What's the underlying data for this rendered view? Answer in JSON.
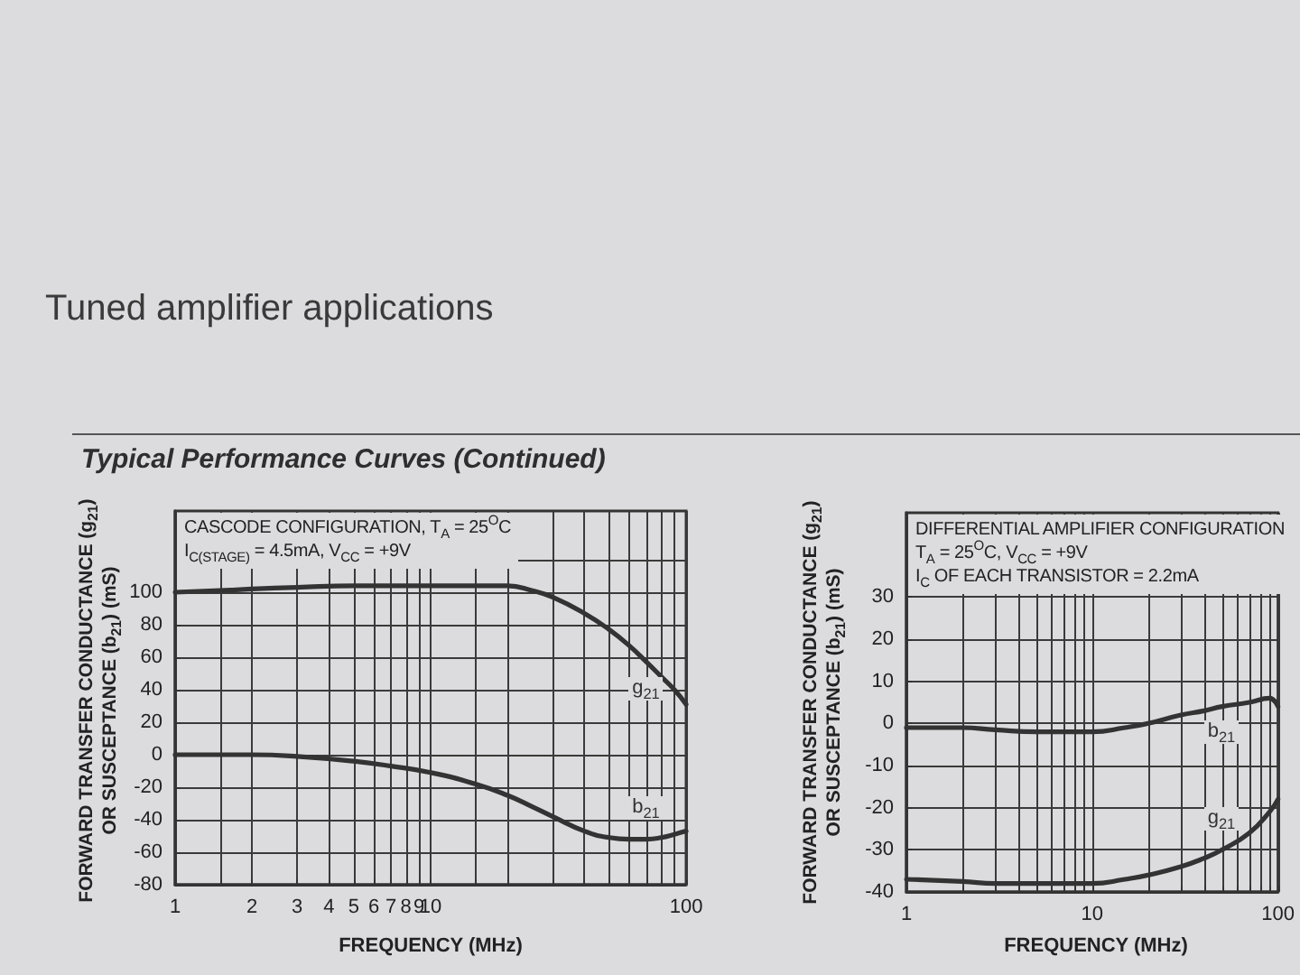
{
  "chart_data": [
    {
      "type": "line",
      "title": "Tuned amplifier applications",
      "subtitle": "Typical Performance Curves (Continued)",
      "annotations": [
        "CASCODE CONFIGURATION, T$_{A}$ = 25$^{O}$C",
        "I$_{C(STAGE)}$ = 4.5mA, V$_{CC}$ = +9V"
      ],
      "xlabel": "FREQUENCY (MHz)",
      "ylabel": "FORWARD TRANSFER CONDUCTANCE (g$_{21}$) OR SUSCEPTANCE (b$_{21}$) (mS)",
      "log": "x",
      "xlim": [
        1,
        100
      ],
      "xticks": [
        1,
        {
          "value": 1.5,
          "label": null
        },
        2,
        3,
        4,
        5,
        6,
        7,
        8,
        9,
        10,
        {
          "value": 15,
          "label": null
        },
        {
          "value": 20,
          "label": null
        },
        {
          "value": 30,
          "label": null
        },
        {
          "value": 40,
          "label": null
        },
        {
          "value": 50,
          "label": null
        },
        {
          "value": 60,
          "label": null
        },
        {
          "value": 70,
          "label": null
        },
        {
          "value": 80,
          "label": null
        },
        {
          "value": 90,
          "label": null
        },
        100
      ],
      "ylim": [
        -80,
        150
      ],
      "yticks": [
        -80,
        -60,
        -40,
        -20,
        0,
        20,
        40,
        60,
        80,
        100,
        {
          "value": 120,
          "label": null
        }
      ],
      "grid": true,
      "marker": "none",
      "series": [
        {
          "name": "g$_{21}$",
          "color": "#333333",
          "x": [
            1,
            1.5,
            2,
            3,
            5,
            7,
            10,
            15,
            20,
            25,
            30,
            40,
            50,
            60,
            70,
            80,
            90,
            100
          ],
          "values": [
            100,
            101,
            102,
            103,
            104,
            104,
            104,
            104,
            104,
            101,
            97,
            87,
            77,
            67,
            57,
            48,
            40,
            31
          ]
        },
        {
          "name": "b$_{21}$",
          "color": "#333333",
          "x": [
            1,
            2,
            3,
            5,
            7,
            10,
            15,
            20,
            25,
            30,
            40,
            50,
            60,
            70,
            80,
            90,
            100
          ],
          "values": [
            0,
            0,
            -1,
            -4,
            -7,
            -11,
            -18,
            -25,
            -32,
            -38,
            -47,
            -51,
            -52,
            -52,
            -51,
            -49,
            -47
          ]
        }
      ]
    },
    {
      "type": "line",
      "annotations": [
        "DIFFERENTIAL AMPLIFIER CONFIGURATION",
        "T$_{A}$ = 25$^{O}$C, V$_{CC}$ = +9V",
        "I$_{C}$ OF EACH TRANSISTOR = 2.2mA"
      ],
      "xlabel": "FREQUENCY (MHz)",
      "ylabel": "FORWARD TRANSFER CONDUCTANCE (g$_{21}$) OR SUSCEPTANCE (b$_{21}$) (mS)",
      "log": "x",
      "xlim": [
        1,
        100
      ],
      "xticks": [
        1,
        {
          "value": 2,
          "label": null
        },
        {
          "value": 3,
          "label": null
        },
        {
          "value": 4,
          "label": null
        },
        {
          "value": 5,
          "label": null
        },
        {
          "value": 6,
          "label": null
        },
        {
          "value": 7,
          "label": null
        },
        {
          "value": 8,
          "label": null
        },
        {
          "value": 9,
          "label": null
        },
        10,
        {
          "value": 20,
          "label": null
        },
        {
          "value": 30,
          "label": null
        },
        {
          "value": 40,
          "label": null
        },
        {
          "value": 50,
          "label": null
        },
        {
          "value": 60,
          "label": null
        },
        {
          "value": 70,
          "label": null
        },
        {
          "value": 80,
          "label": null
        },
        {
          "value": 90,
          "label": null
        },
        100
      ],
      "ylim": [
        -40,
        50
      ],
      "yticks": [
        -40,
        -30,
        -20,
        -10,
        0,
        10,
        20,
        30
      ],
      "grid": true,
      "marker": "none",
      "series": [
        {
          "name": "b$_{21}$",
          "color": "#333333",
          "x": [
            1,
            2,
            3,
            5,
            7,
            10,
            15,
            20,
            30,
            40,
            50,
            70,
            90,
            100
          ],
          "values": [
            -1,
            -1,
            -1.5,
            -2,
            -2,
            -2,
            -1,
            0,
            2,
            3,
            4,
            5,
            6,
            4
          ]
        },
        {
          "name": "g$_{21}$",
          "color": "#333333",
          "x": [
            1,
            2,
            3,
            5,
            7,
            10,
            15,
            20,
            30,
            40,
            50,
            70,
            90,
            100
          ],
          "values": [
            -37,
            -37.5,
            -38,
            -38,
            -38,
            -38,
            -37,
            -36,
            -34,
            -32,
            -30,
            -26,
            -21,
            -18
          ]
        }
      ]
    }
  ]
}
